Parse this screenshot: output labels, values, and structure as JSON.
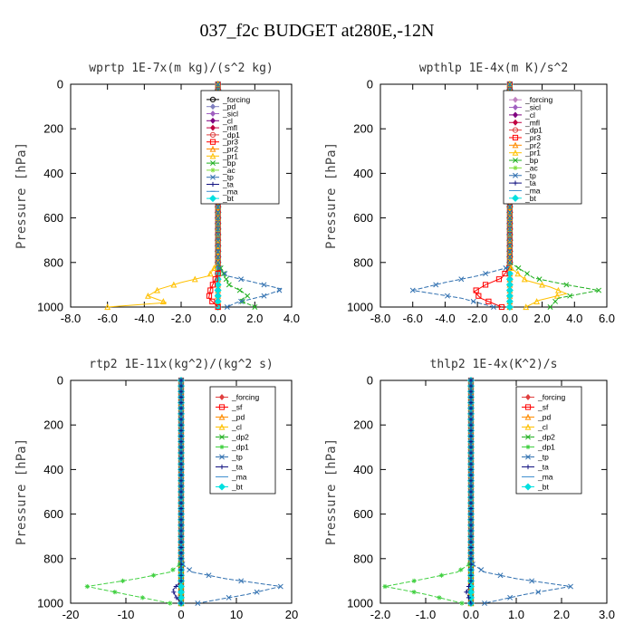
{
  "figure_title": "037_f2c  BUDGET at280E,-12N",
  "chart_data": [
    {
      "type": "line",
      "title": "wprtp  1E-7x(m kg)/(s^2 kg)",
      "ylabel": "Pressure [hPa]",
      "xlim": [
        -8,
        4
      ],
      "ylim": [
        1000,
        0
      ],
      "xticks": [
        "-8.0",
        "-6.0",
        "-4.0",
        "-2.0",
        "0.0",
        "2.0",
        "4.0"
      ],
      "xtick_values": [
        -8,
        -6,
        -4,
        -2,
        0,
        2,
        4
      ],
      "yticks": [
        "0",
        "200",
        "400",
        "600",
        "800",
        "1000"
      ],
      "ytick_values": [
        0,
        200,
        400,
        600,
        800,
        1000
      ],
      "legend_position": "top-right",
      "series": [
        {
          "name": "_forcing",
          "color": "#000000",
          "marker": "o",
          "x": [
            0,
            0,
            0,
            0,
            0,
            0,
            0
          ],
          "y": [
            0,
            200,
            400,
            600,
            800,
            900,
            1000
          ]
        },
        {
          "name": "_pd",
          "color": "#8080c0",
          "marker": "d",
          "x": [
            0,
            0,
            0,
            0,
            0
          ],
          "y": [
            0,
            300,
            600,
            900,
            1000
          ]
        },
        {
          "name": "_sicl",
          "color": "#a060c0",
          "marker": "d",
          "x": [
            0,
            0,
            0,
            0,
            0
          ],
          "y": [
            0,
            300,
            600,
            900,
            1000
          ]
        },
        {
          "name": "_cl",
          "color": "#800080",
          "marker": "d",
          "x": [
            0,
            0,
            0,
            0,
            0
          ],
          "y": [
            0,
            300,
            600,
            900,
            1000
          ]
        },
        {
          "name": "_mfl",
          "color": "#c00040",
          "marker": "d",
          "x": [
            0,
            0,
            0,
            0,
            0
          ],
          "y": [
            0,
            300,
            600,
            900,
            1000
          ]
        },
        {
          "name": "_dp1",
          "color": "#e04040",
          "marker": "o",
          "x": [
            0,
            0,
            0,
            0,
            0
          ],
          "y": [
            0,
            300,
            600,
            900,
            1000
          ]
        },
        {
          "name": "_pr3",
          "color": "#ff0000",
          "marker": "s",
          "x": [
            0,
            0,
            0,
            -0.4,
            -0.5,
            0
          ],
          "y": [
            0,
            500,
            850,
            920,
            960,
            1000
          ]
        },
        {
          "name": "_pr2",
          "color": "#ff8c00",
          "marker": "^",
          "x": [
            0,
            0,
            0,
            0,
            0
          ],
          "y": [
            0,
            300,
            600,
            900,
            1000
          ]
        },
        {
          "name": "_pr1",
          "color": "#ffc000",
          "marker": "^",
          "x": [
            0,
            0,
            -0.5,
            -2.0,
            -3.2,
            -3.8,
            -2.8,
            -6.0
          ],
          "y": [
            0,
            800,
            860,
            890,
            920,
            950,
            980,
            1000
          ]
        },
        {
          "name": "_bp",
          "color": "#20b020",
          "marker": "x",
          "x": [
            0,
            0,
            0.6,
            1.3,
            1.6,
            1.2,
            2.0
          ],
          "y": [
            0,
            800,
            900,
            930,
            950,
            970,
            1000
          ]
        },
        {
          "name": "_ac",
          "color": "#80e040",
          "marker": "*",
          "x": [
            0,
            0,
            0,
            0,
            0
          ],
          "y": [
            0,
            300,
            600,
            900,
            1000
          ]
        },
        {
          "name": "_tp",
          "color": "#3070b0",
          "marker": "x",
          "x": [
            0,
            0,
            0.5,
            2.0,
            3.5,
            2.5,
            1.0,
            0.5
          ],
          "y": [
            0,
            820,
            860,
            890,
            920,
            950,
            980,
            1000
          ]
        },
        {
          "name": "_ta",
          "color": "#101080",
          "marker": "+",
          "x": [
            0,
            0,
            0,
            0,
            0
          ],
          "y": [
            0,
            300,
            600,
            900,
            1000
          ]
        },
        {
          "name": "_ma",
          "color": "#4090d0",
          "marker": "-",
          "x": [
            0,
            0,
            0,
            0,
            0
          ],
          "y": [
            0,
            300,
            600,
            900,
            1000
          ]
        },
        {
          "name": "_bt",
          "color": "#00e0e0",
          "marker": "D",
          "x": [
            0,
            0,
            0,
            0,
            0
          ],
          "y": [
            0,
            300,
            600,
            900,
            1000
          ]
        }
      ]
    },
    {
      "type": "line",
      "title": "wpthlp  1E-4x(m K)/s^2",
      "ylabel": "Pressure [hPa]",
      "xlim": [
        -8,
        6
      ],
      "ylim": [
        1000,
        0
      ],
      "xticks": [
        "-8.0",
        "-6.0",
        "-4.0",
        "-2.0",
        "0.0",
        "2.0",
        "4.0",
        "6.0"
      ],
      "xtick_values": [
        -8,
        -6,
        -4,
        -2,
        0,
        2,
        4,
        6
      ],
      "yticks": [
        "0",
        "200",
        "400",
        "600",
        "800",
        "1000"
      ],
      "ytick_values": [
        0,
        200,
        400,
        600,
        800,
        1000
      ],
      "legend_position": "top-right",
      "series": [
        {
          "name": "_forcing",
          "color": "#c080c0",
          "marker": "d",
          "x": [
            0,
            0,
            0,
            0,
            0
          ],
          "y": [
            0,
            300,
            600,
            900,
            1000
          ]
        },
        {
          "name": "_sicl",
          "color": "#a060c0",
          "marker": "d",
          "x": [
            0,
            0,
            0,
            0,
            0
          ],
          "y": [
            0,
            300,
            600,
            900,
            1000
          ]
        },
        {
          "name": "_cl",
          "color": "#800080",
          "marker": "d",
          "x": [
            0,
            0,
            0,
            0,
            0
          ],
          "y": [
            0,
            300,
            600,
            900,
            1000
          ]
        },
        {
          "name": "_mfl",
          "color": "#c00040",
          "marker": "d",
          "x": [
            0,
            0,
            0,
            0,
            0
          ],
          "y": [
            0,
            300,
            600,
            900,
            1000
          ]
        },
        {
          "name": "_dp1",
          "color": "#e04040",
          "marker": "o",
          "x": [
            0,
            0,
            0,
            0,
            0
          ],
          "y": [
            0,
            300,
            600,
            900,
            1000
          ]
        },
        {
          "name": "_pr3",
          "color": "#ff0000",
          "marker": "s",
          "x": [
            0,
            0,
            -0.5,
            -1.5,
            -2.2,
            -1.8,
            -0.5
          ],
          "y": [
            0,
            820,
            870,
            900,
            930,
            960,
            1000
          ]
        },
        {
          "name": "_pr2",
          "color": "#ff8c00",
          "marker": "^",
          "x": [
            0,
            0,
            0,
            0,
            0
          ],
          "y": [
            0,
            300,
            600,
            900,
            1000
          ]
        },
        {
          "name": "_pr1",
          "color": "#ffc000",
          "marker": "^",
          "x": [
            0,
            0,
            1.0,
            2.5,
            3.5,
            1.8,
            1.0
          ],
          "y": [
            0,
            820,
            880,
            910,
            940,
            970,
            1000
          ]
        },
        {
          "name": "_bp",
          "color": "#20b020",
          "marker": "x",
          "x": [
            0,
            0,
            1.5,
            3.5,
            5.5,
            3.0,
            2.5
          ],
          "y": [
            0,
            800,
            870,
            900,
            925,
            960,
            1000
          ]
        },
        {
          "name": "_ac",
          "color": "#80e040",
          "marker": "*",
          "x": [
            0,
            0,
            0,
            0,
            0
          ],
          "y": [
            0,
            300,
            600,
            900,
            1000
          ]
        },
        {
          "name": "_tp",
          "color": "#3070b0",
          "marker": "x",
          "x": [
            0,
            0,
            -2.0,
            -4.0,
            -6.0,
            -3.0,
            -1.0
          ],
          "y": [
            0,
            820,
            860,
            890,
            925,
            960,
            1000
          ]
        },
        {
          "name": "_ta",
          "color": "#101080",
          "marker": "+",
          "x": [
            0,
            0,
            0,
            0,
            0
          ],
          "y": [
            0,
            300,
            600,
            900,
            1000
          ]
        },
        {
          "name": "_ma",
          "color": "#4090d0",
          "marker": "-",
          "x": [
            0,
            0,
            0,
            0,
            0
          ],
          "y": [
            0,
            300,
            600,
            900,
            1000
          ]
        },
        {
          "name": "_bt",
          "color": "#00e0e0",
          "marker": "D",
          "x": [
            0,
            0,
            0,
            0,
            0
          ],
          "y": [
            0,
            300,
            600,
            900,
            1000
          ]
        }
      ]
    },
    {
      "type": "line",
      "title": "rtp2  1E-11x(kg^2)/(kg^2 s)",
      "ylabel": "Pressure [hPa]",
      "xlim": [
        -20,
        20
      ],
      "ylim": [
        1000,
        0
      ],
      "xticks": [
        "-20",
        "-10",
        "0",
        "10",
        "20"
      ],
      "xtick_values": [
        -20,
        -10,
        0,
        10,
        20
      ],
      "yticks": [
        "0",
        "200",
        "400",
        "600",
        "800",
        "1000"
      ],
      "ytick_values": [
        0,
        200,
        400,
        600,
        800,
        1000
      ],
      "legend_position": "top-right",
      "series": [
        {
          "name": "_forcing",
          "color": "#e04040",
          "marker": "d",
          "x": [
            0,
            0,
            0,
            0,
            0,
            0,
            0
          ],
          "y": [
            0,
            200,
            400,
            600,
            800,
            900,
            1000
          ]
        },
        {
          "name": "_sf",
          "color": "#ff0000",
          "marker": "s",
          "x": [
            0,
            0,
            0,
            0,
            0
          ],
          "y": [
            0,
            300,
            600,
            900,
            1000
          ]
        },
        {
          "name": "_pd",
          "color": "#ff8c00",
          "marker": "^",
          "x": [
            0,
            0,
            0,
            0,
            0
          ],
          "y": [
            0,
            300,
            600,
            900,
            1000
          ]
        },
        {
          "name": "_cl",
          "color": "#ffc000",
          "marker": "^",
          "x": [
            0,
            0,
            0,
            0,
            0
          ],
          "y": [
            0,
            300,
            600,
            900,
            1000
          ]
        },
        {
          "name": "_dp2",
          "color": "#20b020",
          "marker": "x",
          "x": [
            0,
            0,
            0,
            0,
            0
          ],
          "y": [
            0,
            300,
            600,
            900,
            1000
          ]
        },
        {
          "name": "_dp1",
          "color": "#40d040",
          "marker": "*",
          "x": [
            0,
            0,
            -2.0,
            -8.0,
            -17.0,
            -10.0,
            -2.0
          ],
          "y": [
            0,
            820,
            860,
            890,
            925,
            960,
            1000
          ]
        },
        {
          "name": "_tp",
          "color": "#3070b0",
          "marker": "x",
          "x": [
            0,
            0,
            2.0,
            8.0,
            18.0,
            12.0,
            3.0
          ],
          "y": [
            0,
            820,
            860,
            890,
            925,
            960,
            1000
          ]
        },
        {
          "name": "_ta",
          "color": "#101080",
          "marker": "+",
          "x": [
            0,
            0,
            0,
            -1.5,
            -1.0,
            0
          ],
          "y": [
            0,
            800,
            900,
            940,
            970,
            1000
          ]
        },
        {
          "name": "_ma",
          "color": "#4090d0",
          "marker": "-",
          "x": [
            0,
            0,
            0,
            0,
            0
          ],
          "y": [
            0,
            300,
            600,
            900,
            1000
          ]
        },
        {
          "name": "_bt",
          "color": "#00e0e0",
          "marker": "D",
          "x": [
            0,
            0,
            0,
            0,
            0
          ],
          "y": [
            0,
            300,
            600,
            900,
            1000
          ]
        }
      ]
    },
    {
      "type": "line",
      "title": "thlp2  1E-4x(K^2)/s",
      "ylabel": "Pressure [hPa]",
      "xlim": [
        -2,
        3
      ],
      "ylim": [
        1000,
        0
      ],
      "xticks": [
        "-2.0",
        "-1.0",
        "0.0",
        "1.0",
        "2.0",
        "3.0"
      ],
      "xtick_values": [
        -2,
        -1,
        0,
        1,
        2,
        3
      ],
      "yticks": [
        "0",
        "200",
        "400",
        "600",
        "800",
        "1000"
      ],
      "ytick_values": [
        0,
        200,
        400,
        600,
        800,
        1000
      ],
      "legend_position": "top-right",
      "series": [
        {
          "name": "_forcing",
          "color": "#e04040",
          "marker": "d",
          "x": [
            0,
            0,
            0,
            0,
            0,
            0,
            0
          ],
          "y": [
            0,
            200,
            400,
            600,
            800,
            900,
            1000
          ]
        },
        {
          "name": "_sf",
          "color": "#ff0000",
          "marker": "s",
          "x": [
            0,
            0,
            0,
            0,
            0
          ],
          "y": [
            0,
            300,
            600,
            900,
            1000
          ]
        },
        {
          "name": "_pd",
          "color": "#ff8c00",
          "marker": "^",
          "x": [
            0,
            0,
            0,
            0,
            0
          ],
          "y": [
            0,
            300,
            600,
            900,
            1000
          ]
        },
        {
          "name": "_cl",
          "color": "#ffc000",
          "marker": "^",
          "x": [
            0,
            0,
            0,
            0,
            0
          ],
          "y": [
            0,
            300,
            600,
            900,
            1000
          ]
        },
        {
          "name": "_dp2",
          "color": "#20b020",
          "marker": "x",
          "x": [
            0,
            0,
            0,
            0,
            0
          ],
          "y": [
            0,
            300,
            600,
            900,
            1000
          ]
        },
        {
          "name": "_dp1",
          "color": "#40d040",
          "marker": "*",
          "x": [
            0,
            0,
            -0.3,
            -1.0,
            -1.9,
            -1.0,
            -0.2
          ],
          "y": [
            0,
            820,
            860,
            890,
            925,
            960,
            1000
          ]
        },
        {
          "name": "_tp",
          "color": "#3070b0",
          "marker": "x",
          "x": [
            0,
            0,
            0.3,
            1.0,
            2.2,
            1.2,
            0.3
          ],
          "y": [
            0,
            820,
            860,
            890,
            925,
            960,
            1000
          ]
        },
        {
          "name": "_ta",
          "color": "#101080",
          "marker": "+",
          "x": [
            0,
            0,
            0,
            -0.1,
            0
          ],
          "y": [
            0,
            800,
            900,
            950,
            1000
          ]
        },
        {
          "name": "_ma",
          "color": "#4090d0",
          "marker": "-",
          "x": [
            0,
            0,
            0,
            0,
            0
          ],
          "y": [
            0,
            300,
            600,
            900,
            1000
          ]
        },
        {
          "name": "_bt",
          "color": "#00e0e0",
          "marker": "D",
          "x": [
            0,
            0,
            0,
            0,
            0
          ],
          "y": [
            0,
            300,
            600,
            900,
            1000
          ]
        }
      ]
    }
  ]
}
